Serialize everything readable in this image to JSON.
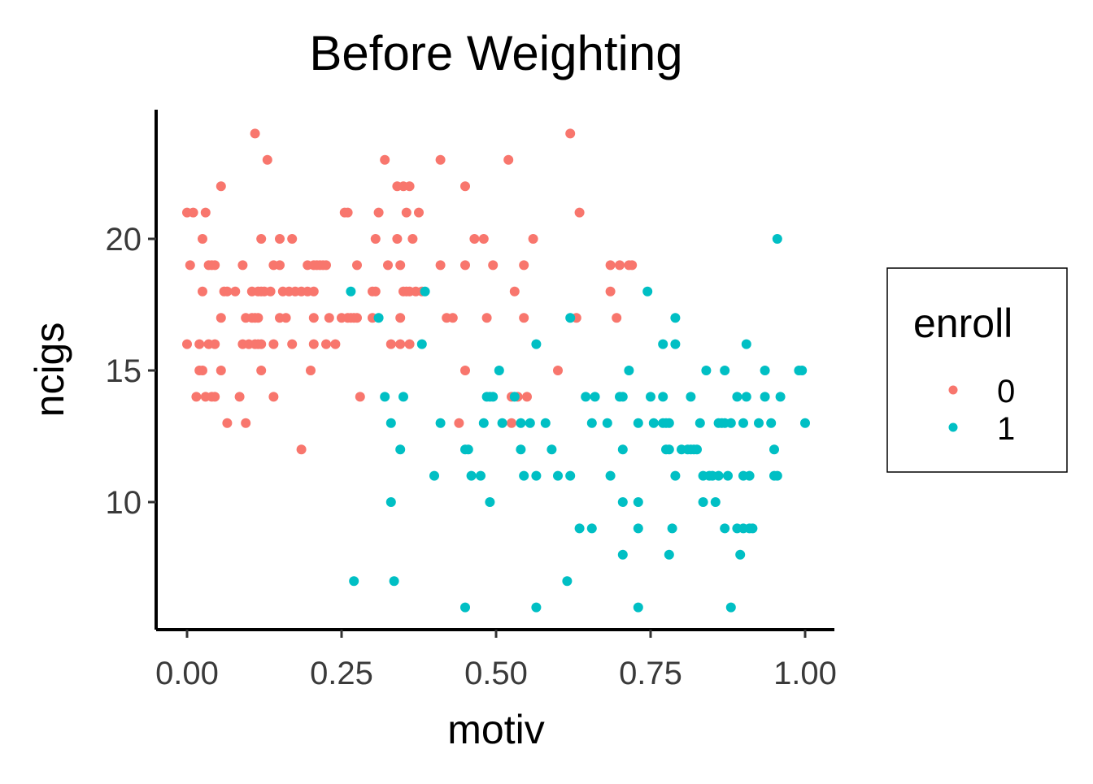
{
  "chart_data": {
    "type": "scatter",
    "title": "Before Weighting",
    "xlabel": "motiv",
    "ylabel": "ncigs",
    "xlim": [
      -0.05,
      1.05
    ],
    "ylim": [
      5,
      25
    ],
    "x_ticks": [
      0.0,
      0.25,
      0.5,
      0.75,
      1.0
    ],
    "x_tick_labels": [
      "0.00",
      "0.25",
      "0.50",
      "0.75",
      "1.00"
    ],
    "y_ticks": [
      10,
      15,
      20
    ],
    "y_tick_labels": [
      "10",
      "15",
      "20"
    ],
    "grid": false,
    "legend": {
      "title": "enroll",
      "placement": "right",
      "entries": [
        {
          "label": "0",
          "color": "#F8766D"
        },
        {
          "label": "1",
          "color": "#00BFC4"
        }
      ]
    },
    "series": [
      {
        "name": "0",
        "color": "#F8766D",
        "points": [
          [
            0.11,
            24
          ],
          [
            0.13,
            23
          ],
          [
            0.055,
            22
          ],
          [
            0.0,
            21
          ],
          [
            0.01,
            21
          ],
          [
            0.03,
            21
          ],
          [
            0.025,
            20
          ],
          [
            0.12,
            20
          ],
          [
            0.15,
            20
          ],
          [
            0.17,
            20
          ],
          [
            0.005,
            19
          ],
          [
            0.035,
            19
          ],
          [
            0.04,
            19
          ],
          [
            0.045,
            19
          ],
          [
            0.09,
            19
          ],
          [
            0.14,
            19
          ],
          [
            0.15,
            19
          ],
          [
            0.195,
            19
          ],
          [
            0.205,
            19
          ],
          [
            0.21,
            19
          ],
          [
            0.215,
            19
          ],
          [
            0.22,
            19
          ],
          [
            0.225,
            19
          ],
          [
            0.025,
            18
          ],
          [
            0.06,
            18
          ],
          [
            0.065,
            18
          ],
          [
            0.078,
            18
          ],
          [
            0.105,
            18
          ],
          [
            0.115,
            18
          ],
          [
            0.12,
            18
          ],
          [
            0.125,
            18
          ],
          [
            0.135,
            18
          ],
          [
            0.155,
            18
          ],
          [
            0.165,
            18
          ],
          [
            0.175,
            18
          ],
          [
            0.185,
            18
          ],
          [
            0.195,
            18
          ],
          [
            0.205,
            18
          ],
          [
            0.055,
            17
          ],
          [
            0.095,
            17
          ],
          [
            0.105,
            17
          ],
          [
            0.11,
            17
          ],
          [
            0.115,
            17
          ],
          [
            0.15,
            17
          ],
          [
            0.16,
            17
          ],
          [
            0.205,
            17
          ],
          [
            0.23,
            17
          ],
          [
            0.25,
            17
          ],
          [
            0.26,
            17
          ],
          [
            0.27,
            17
          ],
          [
            0.0,
            16
          ],
          [
            0.02,
            16
          ],
          [
            0.035,
            16
          ],
          [
            0.045,
            16
          ],
          [
            0.09,
            16
          ],
          [
            0.1,
            16
          ],
          [
            0.11,
            16
          ],
          [
            0.115,
            16
          ],
          [
            0.12,
            16
          ],
          [
            0.14,
            16
          ],
          [
            0.17,
            16
          ],
          [
            0.205,
            16
          ],
          [
            0.225,
            16
          ],
          [
            0.24,
            16
          ],
          [
            0.02,
            15
          ],
          [
            0.025,
            15
          ],
          [
            0.055,
            15
          ],
          [
            0.12,
            15
          ],
          [
            0.2,
            15
          ],
          [
            0.015,
            14
          ],
          [
            0.03,
            14
          ],
          [
            0.04,
            14
          ],
          [
            0.045,
            14
          ],
          [
            0.085,
            14
          ],
          [
            0.14,
            14
          ],
          [
            0.065,
            13
          ],
          [
            0.095,
            13
          ],
          [
            0.185,
            12
          ],
          [
            0.255,
            21
          ],
          [
            0.26,
            21
          ],
          [
            0.275,
            19
          ],
          [
            0.31,
            21
          ],
          [
            0.32,
            23
          ],
          [
            0.34,
            22
          ],
          [
            0.35,
            22
          ],
          [
            0.355,
            21
          ],
          [
            0.36,
            22
          ],
          [
            0.375,
            21
          ],
          [
            0.305,
            20
          ],
          [
            0.34,
            20
          ],
          [
            0.365,
            20
          ],
          [
            0.325,
            19
          ],
          [
            0.345,
            19
          ],
          [
            0.3,
            18
          ],
          [
            0.305,
            18
          ],
          [
            0.35,
            18
          ],
          [
            0.355,
            18
          ],
          [
            0.36,
            18
          ],
          [
            0.37,
            18
          ],
          [
            0.38,
            18
          ],
          [
            0.3,
            17
          ],
          [
            0.275,
            17
          ],
          [
            0.265,
            17
          ],
          [
            0.345,
            17
          ],
          [
            0.33,
            16
          ],
          [
            0.345,
            16
          ],
          [
            0.36,
            16
          ],
          [
            0.28,
            14
          ],
          [
            0.41,
            23
          ],
          [
            0.45,
            22
          ],
          [
            0.52,
            23
          ],
          [
            0.41,
            19
          ],
          [
            0.45,
            19
          ],
          [
            0.495,
            19
          ],
          [
            0.545,
            19
          ],
          [
            0.48,
            20
          ],
          [
            0.465,
            20
          ],
          [
            0.56,
            20
          ],
          [
            0.42,
            17
          ],
          [
            0.43,
            17
          ],
          [
            0.485,
            17
          ],
          [
            0.545,
            17
          ],
          [
            0.53,
            18
          ],
          [
            0.45,
            15
          ],
          [
            0.44,
            13
          ],
          [
            0.525,
            14
          ],
          [
            0.535,
            14
          ],
          [
            0.55,
            14
          ],
          [
            0.525,
            13
          ],
          [
            0.62,
            24
          ],
          [
            0.635,
            21
          ],
          [
            0.6,
            15
          ],
          [
            0.63,
            17
          ],
          [
            0.685,
            19
          ],
          [
            0.7,
            19
          ],
          [
            0.715,
            19
          ],
          [
            0.685,
            18
          ],
          [
            0.695,
            17
          ],
          [
            0.72,
            19
          ]
        ]
      },
      {
        "name": "1",
        "color": "#00BFC4",
        "points": [
          [
            0.265,
            18
          ],
          [
            0.31,
            17
          ],
          [
            0.385,
            18
          ],
          [
            0.38,
            16
          ],
          [
            0.32,
            14
          ],
          [
            0.35,
            14
          ],
          [
            0.33,
            13
          ],
          [
            0.345,
            12
          ],
          [
            0.33,
            10
          ],
          [
            0.27,
            7
          ],
          [
            0.335,
            7
          ],
          [
            0.4,
            11
          ],
          [
            0.41,
            13
          ],
          [
            0.45,
            12
          ],
          [
            0.455,
            12
          ],
          [
            0.46,
            11
          ],
          [
            0.475,
            11
          ],
          [
            0.48,
            13
          ],
          [
            0.485,
            14
          ],
          [
            0.49,
            14
          ],
          [
            0.49,
            10
          ],
          [
            0.495,
            14
          ],
          [
            0.505,
            15
          ],
          [
            0.51,
            13
          ],
          [
            0.53,
            14
          ],
          [
            0.54,
            12
          ],
          [
            0.54,
            13
          ],
          [
            0.545,
            11
          ],
          [
            0.555,
            13
          ],
          [
            0.565,
            16
          ],
          [
            0.565,
            11
          ],
          [
            0.58,
            13
          ],
          [
            0.59,
            12
          ],
          [
            0.6,
            11
          ],
          [
            0.62,
            17
          ],
          [
            0.62,
            11
          ],
          [
            0.615,
            7
          ],
          [
            0.45,
            6
          ],
          [
            0.565,
            6
          ],
          [
            0.645,
            14
          ],
          [
            0.655,
            13
          ],
          [
            0.635,
            9
          ],
          [
            0.655,
            9
          ],
          [
            0.66,
            14
          ],
          [
            0.68,
            13
          ],
          [
            0.685,
            11
          ],
          [
            0.7,
            14
          ],
          [
            0.705,
            14
          ],
          [
            0.705,
            12
          ],
          [
            0.705,
            10
          ],
          [
            0.705,
            8
          ],
          [
            0.715,
            15
          ],
          [
            0.73,
            13
          ],
          [
            0.73,
            10
          ],
          [
            0.73,
            9
          ],
          [
            0.73,
            6
          ],
          [
            0.745,
            18
          ],
          [
            0.75,
            14
          ],
          [
            0.755,
            13
          ],
          [
            0.77,
            16
          ],
          [
            0.77,
            14
          ],
          [
            0.77,
            13
          ],
          [
            0.775,
            13
          ],
          [
            0.775,
            12
          ],
          [
            0.78,
            13
          ],
          [
            0.78,
            12
          ],
          [
            0.78,
            8
          ],
          [
            0.785,
            9
          ],
          [
            0.79,
            17
          ],
          [
            0.79,
            16
          ],
          [
            0.79,
            11
          ],
          [
            0.8,
            12
          ],
          [
            0.81,
            12
          ],
          [
            0.815,
            14
          ],
          [
            0.815,
            12
          ],
          [
            0.82,
            12
          ],
          [
            0.825,
            12
          ],
          [
            0.83,
            13
          ],
          [
            0.835,
            11
          ],
          [
            0.835,
            10
          ],
          [
            0.84,
            15
          ],
          [
            0.845,
            11
          ],
          [
            0.85,
            11
          ],
          [
            0.855,
            10
          ],
          [
            0.86,
            13
          ],
          [
            0.86,
            11
          ],
          [
            0.865,
            13
          ],
          [
            0.87,
            15
          ],
          [
            0.87,
            13
          ],
          [
            0.87,
            9
          ],
          [
            0.875,
            11
          ],
          [
            0.88,
            13
          ],
          [
            0.88,
            6
          ],
          [
            0.89,
            14
          ],
          [
            0.89,
            9
          ],
          [
            0.895,
            8
          ],
          [
            0.9,
            13
          ],
          [
            0.9,
            11
          ],
          [
            0.9,
            9
          ],
          [
            0.905,
            16
          ],
          [
            0.905,
            14
          ],
          [
            0.91,
            11
          ],
          [
            0.91,
            9
          ],
          [
            0.915,
            9
          ],
          [
            0.925,
            13
          ],
          [
            0.935,
            14
          ],
          [
            0.935,
            15
          ],
          [
            0.945,
            13
          ],
          [
            0.95,
            12
          ],
          [
            0.95,
            11
          ],
          [
            0.955,
            20
          ],
          [
            0.955,
            11
          ],
          [
            0.96,
            14
          ],
          [
            0.99,
            15
          ],
          [
            0.995,
            15
          ],
          [
            1.0,
            13
          ]
        ]
      }
    ]
  }
}
